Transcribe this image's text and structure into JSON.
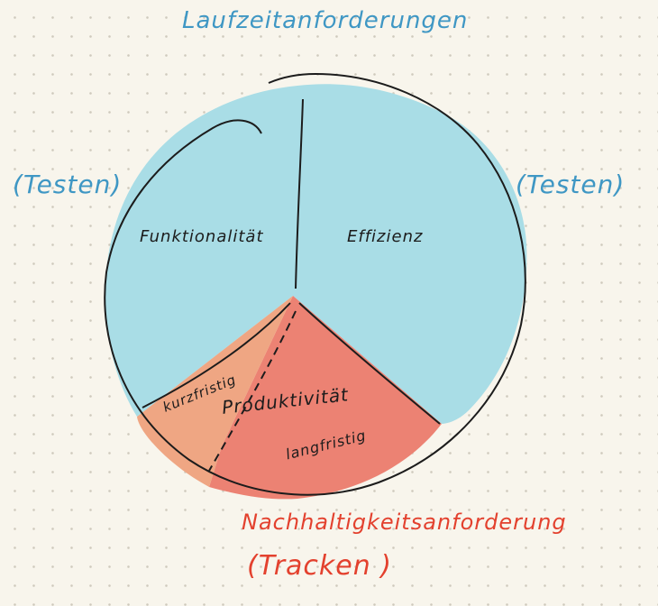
{
  "top_label": "Laufzeitanforderungen",
  "left_note": "(Testen)",
  "right_note": "(Testen)",
  "bottom_label_1": "Nachhaltigkeitsanforderung",
  "bottom_label_2": "(Tracken )",
  "sections": {
    "functionality": "Funktionalität",
    "efficiency": "Effizienz",
    "productivity": "Produktivität",
    "short_term": "kurzfristig",
    "long_term": "langfristig"
  },
  "colors": {
    "blue_fill": "#a9dde6",
    "red_fill": "#ec8273",
    "orange_fill": "#efa683",
    "blue_text": "#3f97c4",
    "red_text": "#e3412e",
    "ink": "#1c1c1c",
    "background": "#f8f5ec"
  }
}
